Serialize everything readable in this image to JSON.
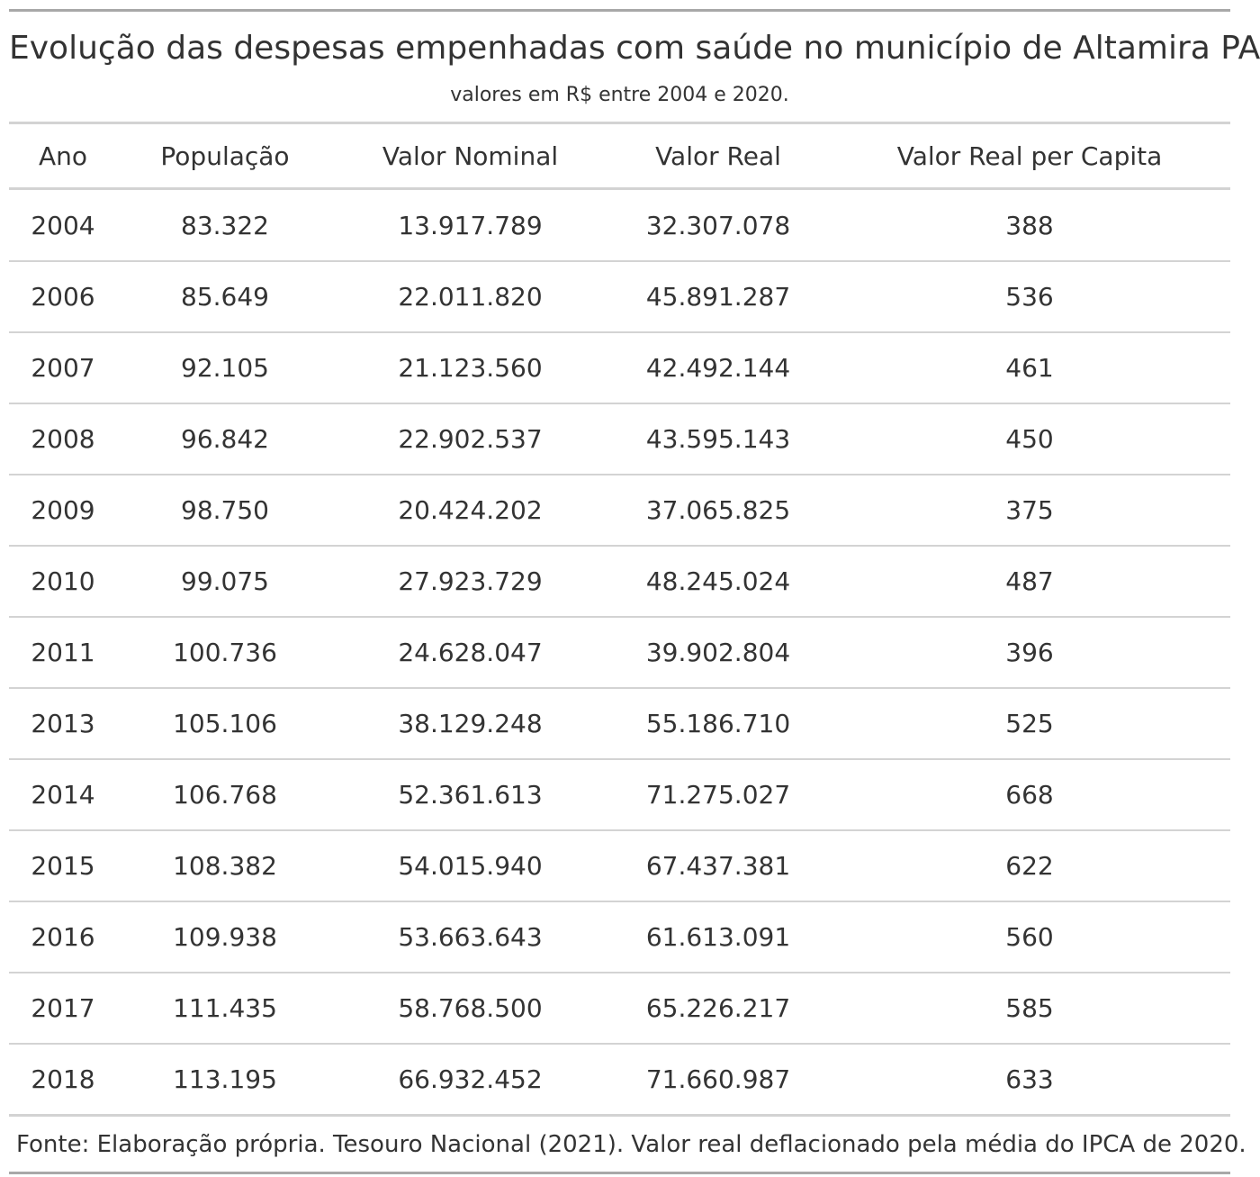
{
  "chart_data": {
    "type": "table",
    "title": "Evolução das despesas empenhadas com saúde no município de Altamira PA",
    "subtitle": "valores em R$ entre 2004 e 2020.",
    "columns": [
      "Ano",
      "População",
      "Valor Nominal",
      "Valor Real",
      "Valor Real per Capita"
    ],
    "rows": [
      [
        "2004",
        "83.322",
        "13.917.789",
        "32.307.078",
        "388"
      ],
      [
        "2006",
        "85.649",
        "22.011.820",
        "45.891.287",
        "536"
      ],
      [
        "2007",
        "92.105",
        "21.123.560",
        "42.492.144",
        "461"
      ],
      [
        "2008",
        "96.842",
        "22.902.537",
        "43.595.143",
        "450"
      ],
      [
        "2009",
        "98.750",
        "20.424.202",
        "37.065.825",
        "375"
      ],
      [
        "2010",
        "99.075",
        "27.923.729",
        "48.245.024",
        "487"
      ],
      [
        "2011",
        "100.736",
        "24.628.047",
        "39.902.804",
        "396"
      ],
      [
        "2013",
        "105.106",
        "38.129.248",
        "55.186.710",
        "525"
      ],
      [
        "2014",
        "106.768",
        "52.361.613",
        "71.275.027",
        "668"
      ],
      [
        "2015",
        "108.382",
        "54.015.940",
        "67.437.381",
        "622"
      ],
      [
        "2016",
        "109.938",
        "53.663.643",
        "61.613.091",
        "560"
      ],
      [
        "2017",
        "111.435",
        "58.768.500",
        "65.226.217",
        "585"
      ],
      [
        "2018",
        "113.195",
        "66.932.452",
        "71.660.987",
        "633"
      ]
    ],
    "footnote": "Fonte: Elaboração própria. Tesouro Nacional (2021). Valor real deflacionado pela média do IPCA de 2020."
  },
  "colors": {
    "text": "#333333",
    "outer_rule": "#a8a8a8",
    "inner_rule": "#d3d3d3",
    "background": "#ffffff"
  }
}
